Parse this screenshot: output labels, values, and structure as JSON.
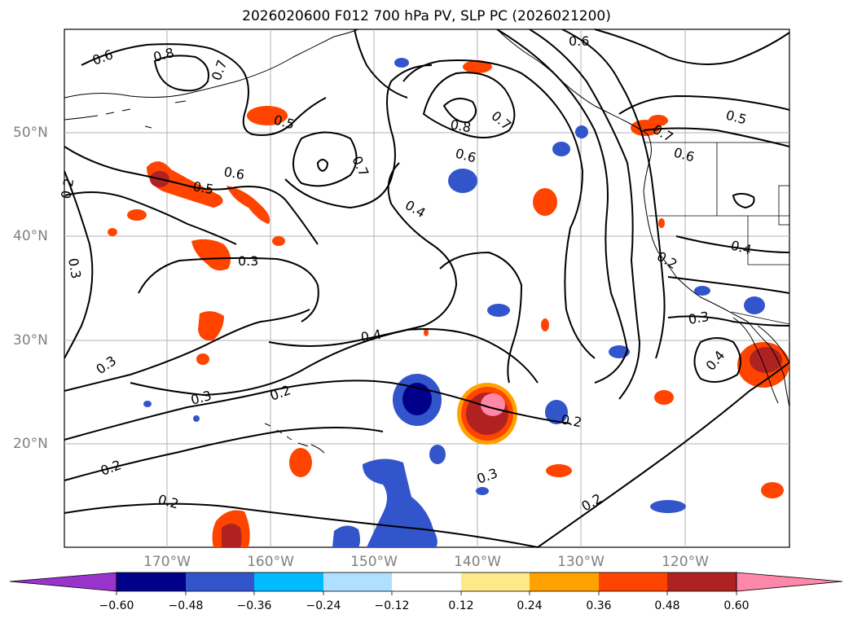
{
  "title": "2026020600 F012 700 hPa PV, SLP PC (2026021200)",
  "map": {
    "lat_labels": [
      "50°N",
      "40°N",
      "30°N",
      "20°N"
    ],
    "lon_labels": [
      "170°W",
      "160°W",
      "150°W",
      "140°W",
      "130°W",
      "120°W"
    ],
    "contour_labels": [
      "0.6",
      "0.8",
      "0.7",
      "0.5",
      "0.6",
      "0.7",
      "0.5",
      "0.2",
      "0.3",
      "0.3",
      "0.4",
      "0.4",
      "0.3",
      "0.2",
      "0.2",
      "0.2",
      "0.3",
      "0.2",
      "0.2",
      "0.8",
      "0.7",
      "0.6",
      "0.6",
      "0.7",
      "0.6",
      "0.5",
      "0.4",
      "0.2",
      "0.3",
      "0.4"
    ]
  },
  "colorbar": {
    "ticks": [
      "−0.60",
      "−0.48",
      "−0.36",
      "−0.24",
      "−0.12",
      "0.12",
      "0.24",
      "0.36",
      "0.48",
      "0.60"
    ],
    "colors": [
      "#9933cc",
      "#00008b",
      "#3355cc",
      "#00bbff",
      "#b0e0ff",
      "#ffffff",
      "#ffe888",
      "#ffa200",
      "#ff4400",
      "#b02222",
      "#ff88aa"
    ]
  }
}
